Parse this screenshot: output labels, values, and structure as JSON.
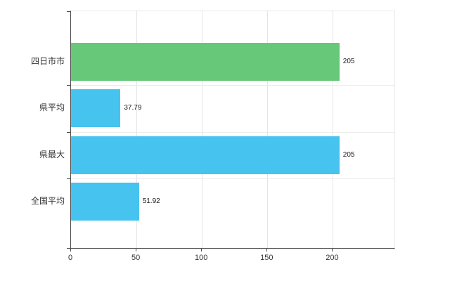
{
  "chart_data": {
    "type": "bar",
    "orientation": "horizontal",
    "title": "",
    "xlabel": "",
    "ylabel": "",
    "categories": [
      "四日市市",
      "県平均",
      "県最大",
      "全国平均"
    ],
    "values": [
      205,
      37.79,
      205,
      51.92
    ],
    "value_labels": [
      "205",
      "37.79",
      "205",
      "51.92"
    ],
    "bar_colors": [
      "#66c878",
      "#46c3ee",
      "#46c3ee",
      "#46c3ee"
    ],
    "x_ticks": [
      0,
      50,
      100,
      150,
      200
    ],
    "x_tick_labels": [
      "0",
      "50",
      "100",
      "150",
      "200"
    ],
    "xlim": [
      0,
      247
    ],
    "grid": true,
    "legend": false
  },
  "colors": {
    "green_bar": "#66c878",
    "blue_bar": "#46c3ee",
    "axis": "#4d4d4d",
    "gridline": "#e4e4e4",
    "text": "#333333",
    "background": "#ffffff"
  }
}
